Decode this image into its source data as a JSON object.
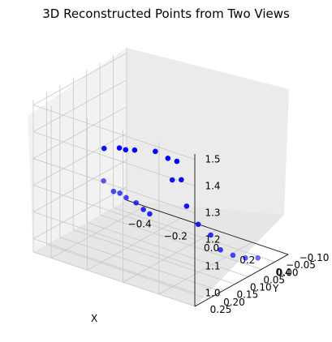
{
  "chart_data": {
    "type": "scatter",
    "title": "3D Reconstructed Points from Two Views",
    "xlabel": "X",
    "ylabel": "Y",
    "zlabel": "",
    "xlim": [
      -0.5,
      0.4
    ],
    "ylim": [
      -0.1,
      0.25
    ],
    "zlim": [
      0.95,
      1.52
    ],
    "x_ticks": [
      "−0.4",
      "−0.2",
      "0.0",
      "0.2",
      "0.4"
    ],
    "y_ticks": [
      "−0.10",
      "−0.05",
      "0.00",
      "0.05",
      "0.10",
      "0.15",
      "0.20",
      "0.25"
    ],
    "z_ticks": [
      "1.0",
      "1.1",
      "1.2",
      "1.3",
      "1.4",
      "1.5"
    ],
    "grid": true,
    "marker_color": "#0000ff",
    "points": [
      {
        "x": -0.45,
        "y": 0.02,
        "z": 1.1
      },
      {
        "x": -0.35,
        "y": 0.05,
        "z": 1.1
      },
      {
        "x": -0.3,
        "y": 0.06,
        "z": 1.11
      },
      {
        "x": -0.25,
        "y": 0.07,
        "z": 1.11
      },
      {
        "x": -0.15,
        "y": 0.1,
        "z": 1.13
      },
      {
        "x": -0.05,
        "y": 0.14,
        "z": 1.15
      },
      {
        "x": 0.0,
        "y": 0.15,
        "z": 1.15
      },
      {
        "x": 0.2,
        "y": 0.2,
        "z": 1.35
      },
      {
        "x": 0.28,
        "y": 0.22,
        "z": 1.38
      },
      {
        "x": 0.28,
        "y": 0.2,
        "z": 1.27
      },
      {
        "x": 0.3,
        "y": 0.17,
        "z": 1.19
      },
      {
        "x": 0.31,
        "y": 0.13,
        "z": 1.13
      },
      {
        "x": 0.32,
        "y": 0.1,
        "z": 1.06
      },
      {
        "x": 0.33,
        "y": 0.06,
        "z": 1.02
      },
      {
        "x": 0.34,
        "y": 0.02,
        "z": 0.99
      },
      {
        "x": 0.35,
        "y": -0.02,
        "z": 0.97
      },
      {
        "x": -0.15,
        "y": 0.22,
        "z": 1.4
      },
      {
        "x": -0.05,
        "y": 0.23,
        "z": 1.43
      },
      {
        "x": 0.0,
        "y": 0.24,
        "z": 1.44
      },
      {
        "x": 0.05,
        "y": 0.24,
        "z": 1.45
      },
      {
        "x": 0.18,
        "y": 0.25,
        "z": 1.48
      },
      {
        "x": 0.25,
        "y": 0.25,
        "z": 1.47
      },
      {
        "x": 0.3,
        "y": 0.25,
        "z": 1.47
      }
    ]
  }
}
